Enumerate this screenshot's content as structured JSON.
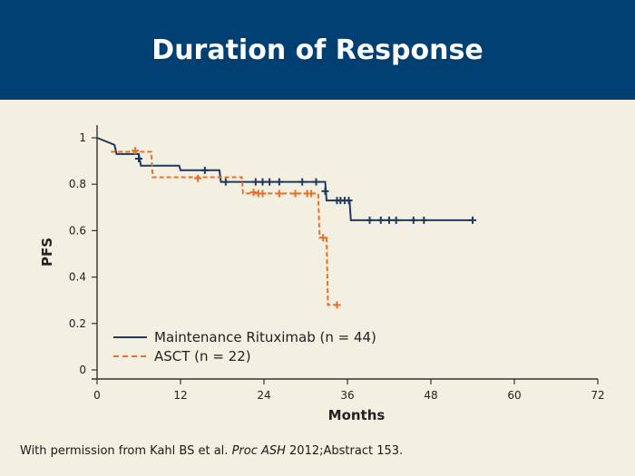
{
  "title": "Duration of Response",
  "footer": {
    "prefix": "With permission from Kahl BS et al. ",
    "journal": "Proc ASH",
    "suffix": " 2012;Abstract 153."
  },
  "colors": {
    "title_bg": "#003f72",
    "background": "#f3efe1",
    "rituximab": "#1f3a5f",
    "asct": "#e8702a"
  },
  "chart_data": {
    "type": "line",
    "title": "",
    "xlabel": "Months",
    "ylabel": "PFS",
    "xlim": [
      0,
      72
    ],
    "ylim": [
      0,
      1
    ],
    "x_ticks": [
      0,
      12,
      24,
      36,
      48,
      60,
      72
    ],
    "y_ticks": [
      0,
      0.2,
      0.4,
      0.6,
      0.8,
      1
    ],
    "y_tick_labels": [
      "0",
      "0.2",
      "0.4",
      "0.6",
      "0.8",
      "1"
    ],
    "legend_position": "bottom-left",
    "series": [
      {
        "name": "Maintenance Rituximab (n = 44)",
        "color": "#1f3a5f",
        "dash": false,
        "steps": [
          [
            0,
            1.0
          ],
          [
            2.5,
            0.97
          ],
          [
            2.8,
            0.93
          ],
          [
            6,
            0.93
          ],
          [
            6.3,
            0.88
          ],
          [
            11.8,
            0.88
          ],
          [
            12,
            0.86
          ],
          [
            17.6,
            0.86
          ],
          [
            17.8,
            0.81
          ],
          [
            32.8,
            0.81
          ],
          [
            33,
            0.73
          ],
          [
            36.3,
            0.73
          ],
          [
            36.5,
            0.645
          ],
          [
            54,
            0.645
          ]
        ],
        "censors": [
          [
            6,
            0.91
          ],
          [
            15.5,
            0.86
          ],
          [
            18.5,
            0.81
          ],
          [
            22.8,
            0.81
          ],
          [
            23.8,
            0.81
          ],
          [
            24.8,
            0.81
          ],
          [
            26.2,
            0.81
          ],
          [
            29.5,
            0.81
          ],
          [
            31.5,
            0.81
          ],
          [
            32.8,
            0.77
          ],
          [
            34.5,
            0.73
          ],
          [
            35.0,
            0.73
          ],
          [
            35.6,
            0.73
          ],
          [
            36.2,
            0.73
          ],
          [
            39.2,
            0.645
          ],
          [
            40.8,
            0.645
          ],
          [
            42,
            0.645
          ],
          [
            43,
            0.645
          ],
          [
            45.5,
            0.645
          ],
          [
            47,
            0.645
          ],
          [
            54,
            0.645
          ]
        ]
      },
      {
        "name": "ASCT (n = 22)",
        "color": "#e8702a",
        "dash": true,
        "steps": [
          [
            2,
            0.94
          ],
          [
            7.8,
            0.94
          ],
          [
            8,
            0.83
          ],
          [
            20.8,
            0.83
          ],
          [
            21,
            0.76
          ],
          [
            31.8,
            0.76
          ],
          [
            32,
            0.57
          ],
          [
            33,
            0.57
          ],
          [
            33.2,
            0.28
          ],
          [
            34.5,
            0.28
          ]
        ],
        "censors": [
          [
            5.5,
            0.945
          ],
          [
            14.5,
            0.825
          ],
          [
            22.5,
            0.765
          ],
          [
            23.2,
            0.76
          ],
          [
            23.8,
            0.76
          ],
          [
            26.2,
            0.76
          ],
          [
            28.5,
            0.76
          ],
          [
            30.2,
            0.76
          ],
          [
            30.8,
            0.76
          ],
          [
            32.5,
            0.57
          ],
          [
            34.5,
            0.28
          ]
        ]
      }
    ]
  }
}
